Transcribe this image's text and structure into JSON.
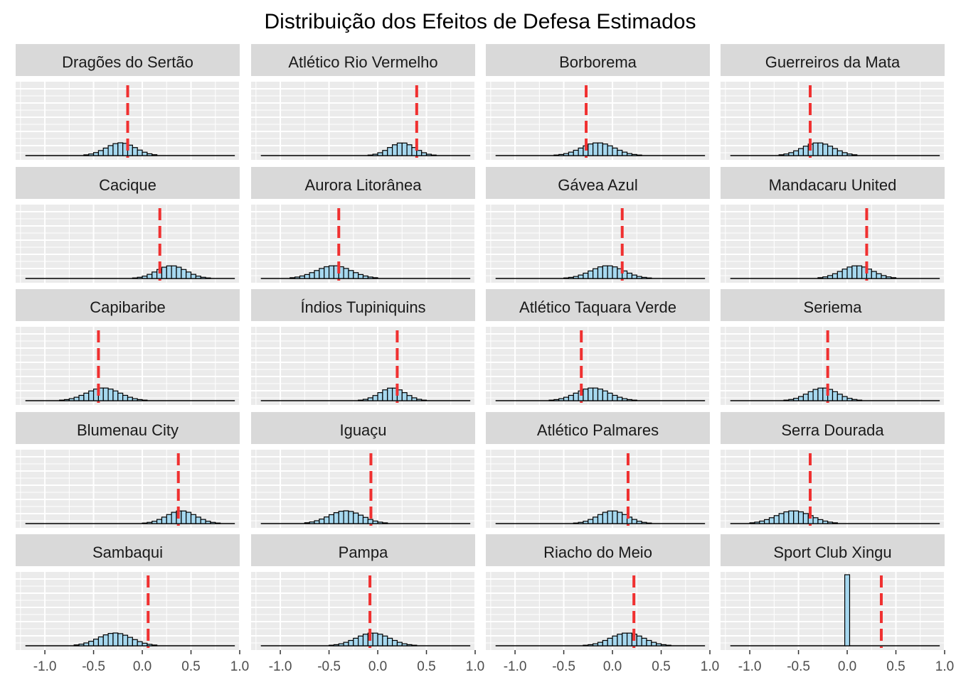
{
  "chart_data": {
    "type": "histogram-facets",
    "title": "Distribuição dos Efeitos de Defesa Estimados",
    "xlabel": "",
    "ylabel": "",
    "xlim": [
      -1.3,
      1.0
    ],
    "x_ticks": [
      -1.0,
      -0.5,
      0.0,
      0.5,
      1.0
    ],
    "x_tick_labels": [
      "-1.0",
      "-0.5",
      "0.0",
      "0.5",
      "1.0"
    ],
    "grid": true,
    "colors": {
      "bar_fill": "#a6d8ef",
      "bar_stroke": "#000000",
      "reference_line": "#f03030",
      "panel_background": "#ebebeb",
      "strip_background": "#d9d9d9",
      "grid": "#ffffff"
    },
    "reference_line_style": "dashed",
    "panels": [
      {
        "name": "Dragões do Sertão",
        "mean": -0.22,
        "sd": 0.15,
        "ref": -0.15
      },
      {
        "name": "Atlético Rio Vermelho",
        "mean": 0.25,
        "sd": 0.13,
        "ref": 0.4
      },
      {
        "name": "Borborema",
        "mean": -0.15,
        "sd": 0.17,
        "ref": -0.27
      },
      {
        "name": "Guerreiros da Mata",
        "mean": -0.3,
        "sd": 0.16,
        "ref": -0.38
      },
      {
        "name": "Cacique",
        "mean": 0.3,
        "sd": 0.15,
        "ref": 0.18
      },
      {
        "name": "Aurora Litorânea",
        "mean": -0.45,
        "sd": 0.18,
        "ref": -0.4
      },
      {
        "name": "Gávea Azul",
        "mean": -0.05,
        "sd": 0.17,
        "ref": 0.1
      },
      {
        "name": "Mandacaru United",
        "mean": 0.1,
        "sd": 0.16,
        "ref": 0.2
      },
      {
        "name": "Capibaribe",
        "mean": -0.4,
        "sd": 0.17,
        "ref": -0.45
      },
      {
        "name": "Índios Tupiniquins",
        "mean": 0.15,
        "sd": 0.13,
        "ref": 0.2
      },
      {
        "name": "Atlético Taquara Verde",
        "mean": -0.2,
        "sd": 0.17,
        "ref": -0.32
      },
      {
        "name": "Seriema",
        "mean": -0.25,
        "sd": 0.15,
        "ref": -0.2
      },
      {
        "name": "Blumenau City",
        "mean": 0.4,
        "sd": 0.15,
        "ref": 0.37
      },
      {
        "name": "Iguaçu",
        "mean": -0.33,
        "sd": 0.17,
        "ref": -0.07
      },
      {
        "name": "Atlético Palmares",
        "mean": 0.0,
        "sd": 0.15,
        "ref": 0.16
      },
      {
        "name": "Serra Dourada",
        "mean": -0.55,
        "sd": 0.18,
        "ref": -0.38
      },
      {
        "name": "Sambaqui",
        "mean": -0.28,
        "sd": 0.17,
        "ref": 0.06
      },
      {
        "name": "Pampa",
        "mean": -0.05,
        "sd": 0.17,
        "ref": -0.08
      },
      {
        "name": "Riacho do Meio",
        "mean": 0.15,
        "sd": 0.17,
        "ref": 0.22
      },
      {
        "name": "Sport Club Xingu",
        "point_mass": 0.0,
        "ref": 0.35
      }
    ]
  }
}
